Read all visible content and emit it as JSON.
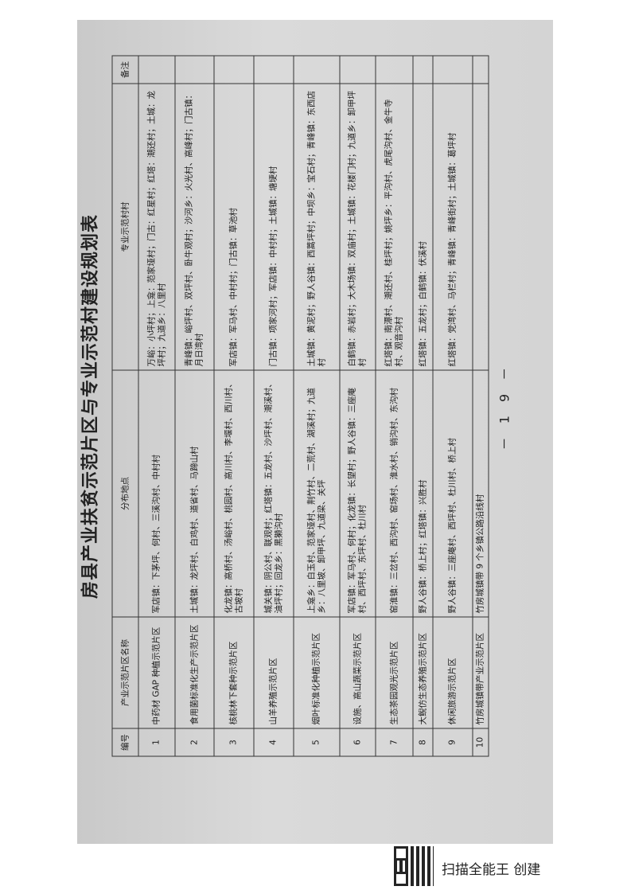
{
  "title": "房县产业扶贫示范片区与专业示范村建设规划表",
  "headers": [
    "编号",
    "产业示范片区名称",
    "分布地点",
    "专业示范村村",
    "备注"
  ],
  "rows": [
    {
      "no": "1",
      "name": "中药材 GAP 种植示范片区",
      "location": "军店镇：下茅坪、何村、三溪沟村、中村村",
      "villages": "万峪：小坪村；上龛：范家垭村；门古：红星村；红塔：潮还村；土城：龙坪村；九道乡：八里村",
      "remark": ""
    },
    {
      "no": "2",
      "name": "食用菌标准化生产示范片区",
      "location": "土城镇：龙坪村、白鸡村、道省村、马蹄山村",
      "villages": "青峰镇：峪坪村、双坪村、卧牛观村；沙河乡：火光村、高峰村；门古镇：月日湾村",
      "remark": ""
    },
    {
      "no": "3",
      "name": "核桃林下套种示范片区",
      "location": "化龙镇：高桥村、汤峪村、桃园村、高川村、李堰村、西川村、古坡村",
      "villages": "军店镇：军马村、中村村；门古镇：草池村",
      "remark": ""
    },
    {
      "no": "4",
      "name": "山羊养殖示范片区",
      "location": "城关镇：阴公村、联观村；红塔镇：五龙村、沙坪村、潮溪村、油坪村；回龙乡：黑獭沟村",
      "villages": "门古镇：项家河村；军店镇：中村村；土城镇：塘埂村",
      "remark": ""
    },
    {
      "no": "5",
      "name": "烟叶标准化种植示范片区",
      "location": "上龛乡：白玉村、范家垭村、荆竹村、二荒村、湖溪村；九道乡：八里坡、卸甲坪、九道梁、关坪",
      "villages": "土城镇：黄泥村；野人谷镇：西蒿坪村；中坝乡：宝石村；青峰镇：东西店村",
      "remark": ""
    },
    {
      "no": "6",
      "name": "设施、高山蔬菜示范片区",
      "location": "军店镇：军马村、何村；化龙镇：长望村；野人谷镇：三座庵村、西坪村、东坪村、杜川村",
      "villages": "白鹤镇：赤岩村；大木场镇：双庙村；土城镇：花楼门村；九道乡：卸甲坪村",
      "remark": ""
    },
    {
      "no": "7",
      "name": "生态茶园观光示范片区",
      "location": "窑淮镇：三岔村、西沟村、窑场村、淮水村、销沟村、东沟村",
      "villages": "红塔镇：南潭村、潮还村、桂坪村；姚坪乡：平沟村、虎尾沟村、金牛寺村、观音沟村",
      "remark": ""
    },
    {
      "no": "8",
      "name": "大鲵仿生态养殖示范片区",
      "location": "野人谷镇：桥上村；红塔镇：兴胜村",
      "villages": "红塔镇：五龙村；白鹤镇：伏溪村",
      "remark": ""
    },
    {
      "no": "9",
      "name": "休闲旅游示范片区",
      "location": "野人谷镇：三座庵村、西坪村、杜川村、桥上村",
      "villages": "红塔镇：党湾村、马栏村；青峰镇：青峰街村；土城镇：葛坪村",
      "remark": ""
    },
    {
      "no": "10",
      "name": "竹房城镇带产业示范片区",
      "location": "竹房城镇带 9 个乡镇公路沿线村",
      "villages": "",
      "remark": ""
    }
  ],
  "page_number": "－ 1 9 －",
  "footer": {
    "scanner_label": "扫描全能王 创建"
  }
}
